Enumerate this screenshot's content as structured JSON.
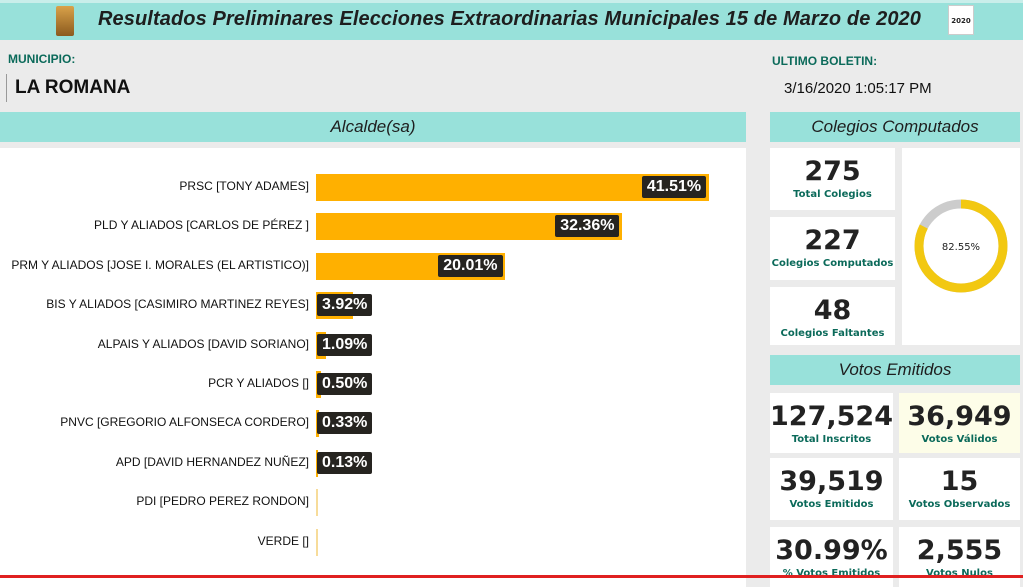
{
  "header": {
    "title": "Resultados Preliminares Elecciones Extraordinarias Municipales 15 de Marzo de 2020",
    "logo_right_text": "2020"
  },
  "municipio": {
    "label": "MUNICIPIO:",
    "value": "LA ROMANA"
  },
  "boletin": {
    "label": "ULTIMO BOLETIN:",
    "value": "3/16/2020 1:05:17 PM"
  },
  "alcalde": {
    "title": "Alcalde(sa)",
    "bar_color": "#FFB000",
    "rows": [
      {
        "label": "PRSC [TONY ADAMES]",
        "value": 41.51,
        "text": "41.51%"
      },
      {
        "label": "PLD Y ALIADOS [CARLOS DE PÉREZ ]",
        "value": 32.36,
        "text": "32.36%"
      },
      {
        "label": "PRM Y ALIADOS [JOSE I. MORALES (EL ARTISTICO)]",
        "value": 20.01,
        "text": "20.01%"
      },
      {
        "label": "BIS Y ALIADOS [CASIMIRO MARTINEZ REYES]",
        "value": 3.92,
        "text": "3.92%"
      },
      {
        "label": "ALPAIS Y ALIADOS [DAVID SORIANO]",
        "value": 1.09,
        "text": "1.09%"
      },
      {
        "label": "PCR Y ALIADOS []",
        "value": 0.5,
        "text": "0.50%"
      },
      {
        "label": "PNVC [GREGORIO ALFONSECA CORDERO]",
        "value": 0.33,
        "text": "0.33%"
      },
      {
        "label": "APD [DAVID HERNANDEZ NUÑEZ]",
        "value": 0.13,
        "text": "0.13%"
      },
      {
        "label": "PDI [PEDRO PEREZ RONDON]",
        "value": 0,
        "text": ""
      },
      {
        "label": "VERDE []",
        "value": 0,
        "text": ""
      }
    ]
  },
  "colegios": {
    "title": "Colegios Computados",
    "cards": [
      {
        "num": "275",
        "cap": "Total Colegios"
      },
      {
        "num": "227",
        "cap": "Colegios Computados"
      },
      {
        "num": "48",
        "cap": "Colegios Faltantes"
      }
    ],
    "donut": {
      "percent": 82.55,
      "text": "82.55%",
      "color": "#F2C811",
      "track": "#CCCCCC"
    }
  },
  "votos": {
    "title": "Votos Emitidos",
    "cards": [
      {
        "num": "127,524",
        "cap": "Total Inscritos"
      },
      {
        "num": "36,949",
        "cap": "Votos Válidos"
      },
      {
        "num": "39,519",
        "cap": "Votos Emitidos"
      },
      {
        "num": "15",
        "cap": "Votos Observados"
      },
      {
        "num": "30.99%",
        "cap": "% Votos Emitidos"
      },
      {
        "num": "2,555",
        "cap": "Votos Nulos"
      }
    ]
  }
}
